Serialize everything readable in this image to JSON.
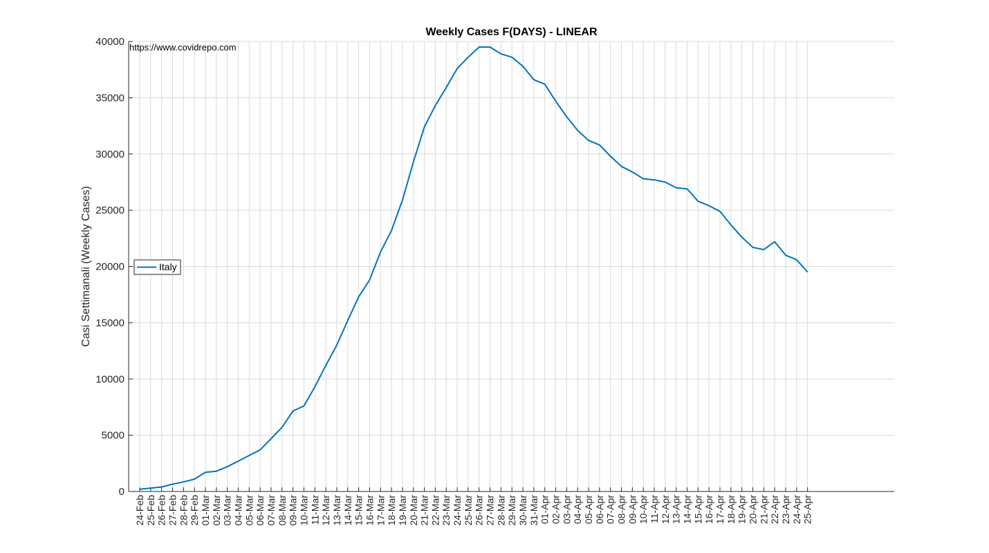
{
  "chart_data": {
    "type": "line",
    "title": "Weekly Cases F(DAYS) - LINEAR",
    "xlabel": "",
    "ylabel": "Casi Settimanali (Weekly Cases)",
    "watermark": "https://www.covidrepo.com",
    "ylim": [
      0,
      40000
    ],
    "yticks": [
      0,
      5000,
      10000,
      15000,
      20000,
      25000,
      30000,
      35000,
      40000
    ],
    "grid": true,
    "legend_position": "west",
    "colors": {
      "series": "#0072BD",
      "grid": "#d9d9d9",
      "axis": "#262626"
    },
    "x": [
      "24-Feb",
      "25-Feb",
      "26-Feb",
      "27-Feb",
      "28-Feb",
      "29-Feb",
      "01-Mar",
      "02-Mar",
      "03-Mar",
      "04-Mar",
      "05-Mar",
      "06-Mar",
      "07-Mar",
      "08-Mar",
      "09-Mar",
      "10-Mar",
      "11-Mar",
      "12-Mar",
      "13-Mar",
      "14-Mar",
      "15-Mar",
      "16-Mar",
      "17-Mar",
      "18-Mar",
      "19-Mar",
      "20-Mar",
      "21-Mar",
      "22-Mar",
      "23-Mar",
      "24-Mar",
      "25-Mar",
      "26-Mar",
      "27-Mar",
      "28-Mar",
      "29-Mar",
      "30-Mar",
      "31-Mar",
      "01-Apr",
      "02-Apr",
      "03-Apr",
      "04-Apr",
      "05-Apr",
      "06-Apr",
      "07-Apr",
      "08-Apr",
      "09-Apr",
      "10-Apr",
      "11-Apr",
      "12-Apr",
      "13-Apr",
      "14-Apr",
      "15-Apr",
      "16-Apr",
      "17-Apr",
      "18-Apr",
      "19-Apr",
      "20-Apr",
      "21-Apr",
      "22-Apr",
      "23-Apr",
      "24-Apr",
      "25-Apr"
    ],
    "series": [
      {
        "name": "Italy",
        "values": [
          200,
          300,
          400,
          650,
          850,
          1100,
          1700,
          1800,
          2200,
          2700,
          3200,
          3700,
          4700,
          5700,
          7150,
          7600,
          9300,
          11200,
          13000,
          15200,
          17300,
          18800,
          21300,
          23200,
          25900,
          29300,
          32400,
          34300,
          35900,
          37600,
          38600,
          39500,
          39500,
          38900,
          38600,
          37800,
          36600,
          36200,
          34700,
          33300,
          32100,
          31200,
          30800,
          29800,
          28900,
          28400,
          27800,
          27700,
          27500,
          27000,
          26900,
          25800,
          25400,
          24900,
          23700,
          22600,
          21700,
          21500,
          22200,
          21000,
          20600,
          19500
        ]
      }
    ]
  }
}
